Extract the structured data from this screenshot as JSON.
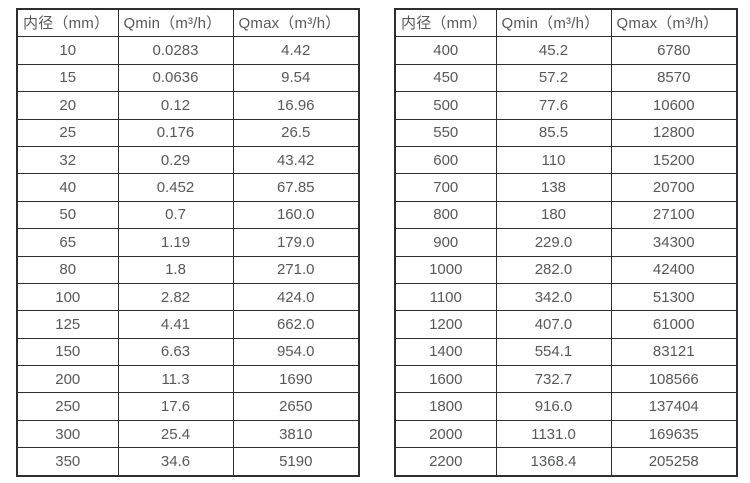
{
  "page": {
    "background_color": "#ffffff",
    "border_color": "#2e2e2e",
    "text_color": "#575859"
  },
  "chart_data": [
    {
      "type": "table",
      "title": "",
      "columns": [
        "内径（mm）",
        "Qmin（m³/h）",
        "Qmax（m³/h）"
      ],
      "rows": [
        [
          "10",
          "0.0283",
          "4.42"
        ],
        [
          "15",
          "0.0636",
          "9.54"
        ],
        [
          "20",
          "0.12",
          "16.96"
        ],
        [
          "25",
          "0.176",
          "26.5"
        ],
        [
          "32",
          "0.29",
          "43.42"
        ],
        [
          "40",
          "0.452",
          "67.85"
        ],
        [
          "50",
          "0.7",
          "160.0"
        ],
        [
          "65",
          "1.19",
          "179.0"
        ],
        [
          "80",
          "1.8",
          "271.0"
        ],
        [
          "100",
          "2.82",
          "424.0"
        ],
        [
          "125",
          "4.41",
          "662.0"
        ],
        [
          "150",
          "6.63",
          "954.0"
        ],
        [
          "200",
          "11.3",
          "1690"
        ],
        [
          "250",
          "17.6",
          "2650"
        ],
        [
          "300",
          "25.4",
          "3810"
        ],
        [
          "350",
          "34.6",
          "5190"
        ]
      ]
    },
    {
      "type": "table",
      "title": "",
      "columns": [
        "内径（mm）",
        "Qmin（m³/h）",
        "Qmax（m³/h）"
      ],
      "rows": [
        [
          "400",
          "45.2",
          "6780"
        ],
        [
          "450",
          "57.2",
          "8570"
        ],
        [
          "500",
          "77.6",
          "10600"
        ],
        [
          "550",
          "85.5",
          "12800"
        ],
        [
          "600",
          "110",
          "15200"
        ],
        [
          "700",
          "138",
          "20700"
        ],
        [
          "800",
          "180",
          "27100"
        ],
        [
          "900",
          "229.0",
          "34300"
        ],
        [
          "1000",
          "282.0",
          "42400"
        ],
        [
          "1100",
          "342.0",
          "51300"
        ],
        [
          "1200",
          "407.0",
          "61000"
        ],
        [
          "1400",
          "554.1",
          "83121"
        ],
        [
          "1600",
          "732.7",
          "108566"
        ],
        [
          "1800",
          "916.0",
          "137404"
        ],
        [
          "2000",
          "1131.0",
          "169635"
        ],
        [
          "2200",
          "1368.4",
          "205258"
        ]
      ]
    }
  ]
}
